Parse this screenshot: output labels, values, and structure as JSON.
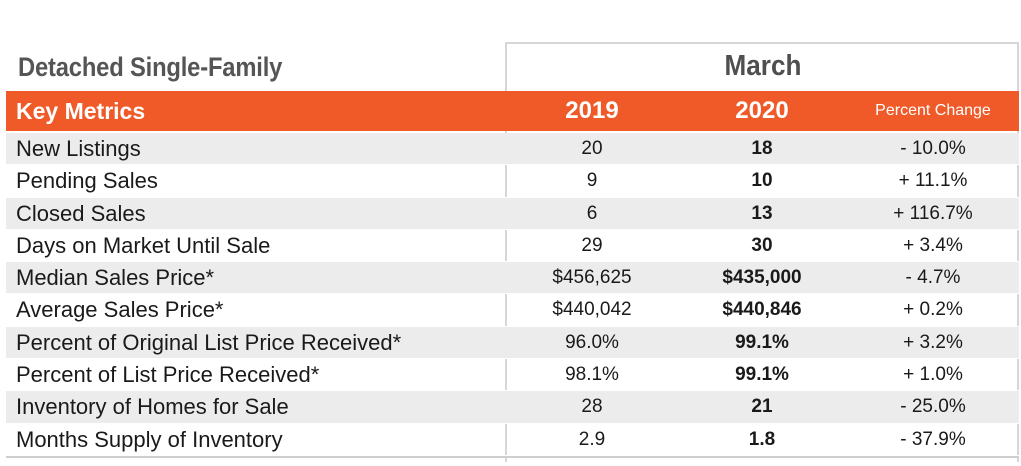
{
  "title": "Detached Single-Family",
  "period": "March",
  "columns": {
    "metric": "Key Metrics",
    "year_a": "2019",
    "year_b": "2020",
    "change": "Percent Change"
  },
  "colors": {
    "header_bg": "#ef5a28",
    "header_text": "#ffffff",
    "row_shade": "#ececec"
  },
  "rows": [
    {
      "label": "New Listings",
      "y2019": "20",
      "y2020": "18",
      "change": "- 10.0%"
    },
    {
      "label": "Pending Sales",
      "y2019": "9",
      "y2020": "10",
      "change": "+ 11.1%"
    },
    {
      "label": "Closed Sales",
      "y2019": "6",
      "y2020": "13",
      "change": "+ 116.7%"
    },
    {
      "label": "Days on Market Until Sale",
      "y2019": "29",
      "y2020": "30",
      "change": "+ 3.4%"
    },
    {
      "label": "Median Sales Price*",
      "y2019": "$456,625",
      "y2020": "$435,000",
      "change": "- 4.7%"
    },
    {
      "label": "Average Sales Price*",
      "y2019": "$440,042",
      "y2020": "$440,846",
      "change": "+ 0.2%"
    },
    {
      "label": "Percent of Original List Price Received*",
      "y2019": "96.0%",
      "y2020": "99.1%",
      "change": "+ 3.2%"
    },
    {
      "label": "Percent of List Price Received*",
      "y2019": "98.1%",
      "y2020": "99.1%",
      "change": "+ 1.0%"
    },
    {
      "label": "Inventory of Homes for Sale",
      "y2019": "28",
      "y2020": "21",
      "change": "- 25.0%"
    },
    {
      "label": "Months Supply of Inventory",
      "y2019": "2.9",
      "y2020": "1.8",
      "change": "- 37.9%"
    }
  ]
}
